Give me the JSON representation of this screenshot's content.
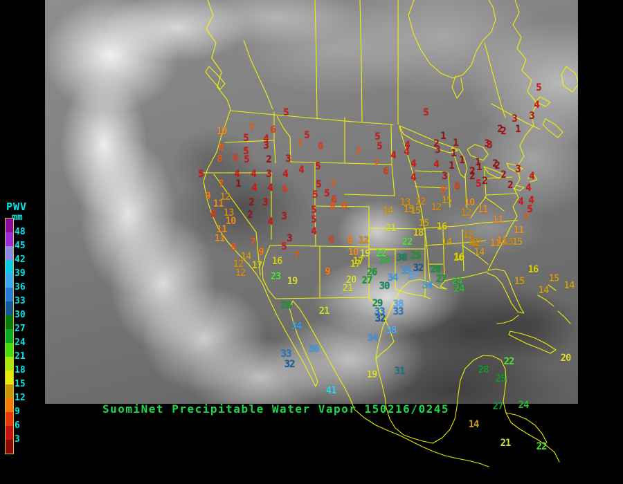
{
  "title": {
    "text": "SuomiNet Precipitable Water Vapor 150216/0245",
    "color": "#1ed74a"
  },
  "legend": {
    "heading": "PWV",
    "unit": "mm",
    "label_color": "#00e8e8",
    "labels": [
      "48",
      "45",
      "42",
      "39",
      "36",
      "33",
      "30",
      "27",
      "24",
      "21",
      "18",
      "15",
      "12",
      "9",
      "6",
      "3"
    ],
    "cell_colors": [
      "#8a0a9a",
      "#9a2ad2",
      "#8d8ae6",
      "#0cc8e6",
      "#3aa8f5",
      "#2a7ad8",
      "#14579a",
      "#0a7a10",
      "#0aa822",
      "#46da10",
      "#aae80a",
      "#e8e80a",
      "#c8960a",
      "#f5780a",
      "#e6360e",
      "#c41212",
      "#8a0a0a"
    ]
  },
  "map": {
    "outline_color": "#f8f800"
  },
  "palette": [
    [
      2,
      "#a01010"
    ],
    [
      3,
      "#b81212"
    ],
    [
      5,
      "#d81414"
    ],
    [
      6,
      "#e63a14"
    ],
    [
      8,
      "#ef5c14"
    ],
    [
      9,
      "#ff7c10"
    ],
    [
      11,
      "#eb8d25"
    ],
    [
      13,
      "#cc8a14"
    ],
    [
      15,
      "#c89c1c"
    ],
    [
      18,
      "#d9cf10"
    ],
    [
      20,
      "#dede3a"
    ],
    [
      21,
      "#d2e032"
    ],
    [
      23,
      "#4ce63c"
    ],
    [
      24,
      "#28bd3c"
    ],
    [
      28,
      "#129b35"
    ],
    [
      30,
      "#0c8a57"
    ],
    [
      31,
      "#19738f"
    ],
    [
      32,
      "#155a99"
    ],
    [
      33,
      "#2478cc"
    ],
    [
      36,
      "#3a99ea"
    ],
    [
      38,
      "#56abf5"
    ],
    [
      40,
      "#63b8ff"
    ],
    [
      99,
      "#35d8ee"
    ]
  ],
  "stations": [
    [
      413,
      163,
      "5"
    ],
    [
      363,
      185,
      "7"
    ],
    [
      394,
      188,
      "6"
    ],
    [
      320,
      190,
      "10"
    ],
    [
      355,
      200,
      "5"
    ],
    [
      384,
      201,
      "4"
    ],
    [
      443,
      196,
      "5"
    ],
    [
      433,
      209,
      "7"
    ],
    [
      463,
      212,
      "6"
    ],
    [
      319,
      214,
      "8"
    ],
    [
      355,
      219,
      "5"
    ],
    [
      384,
      211,
      "3"
    ],
    [
      317,
      230,
      "8"
    ],
    [
      340,
      229,
      "6"
    ],
    [
      356,
      231,
      "5"
    ],
    [
      388,
      231,
      "2"
    ],
    [
      416,
      230,
      "3"
    ],
    [
      290,
      252,
      "5"
    ],
    [
      319,
      266,
      "7"
    ],
    [
      300,
      284,
      "9"
    ],
    [
      325,
      285,
      "12"
    ],
    [
      342,
      252,
      "4"
    ],
    [
      344,
      266,
      "1"
    ],
    [
      366,
      252,
      "4"
    ],
    [
      388,
      252,
      "3"
    ],
    [
      412,
      252,
      "4"
    ],
    [
      435,
      246,
      "4"
    ],
    [
      459,
      241,
      "5"
    ],
    [
      367,
      272,
      "4"
    ],
    [
      390,
      272,
      "4"
    ],
    [
      411,
      274,
      "6"
    ],
    [
      460,
      267,
      "5"
    ],
    [
      481,
      267,
      "7"
    ],
    [
      472,
      280,
      "5"
    ],
    [
      482,
      289,
      "6"
    ],
    [
      455,
      282,
      "5"
    ],
    [
      315,
      295,
      "11"
    ],
    [
      308,
      310,
      "6"
    ],
    [
      330,
      308,
      "13"
    ],
    [
      333,
      320,
      "10"
    ],
    [
      320,
      332,
      "11"
    ],
    [
      317,
      345,
      "11"
    ],
    [
      337,
      358,
      "8"
    ],
    [
      344,
      382,
      "12"
    ],
    [
      371,
      384,
      "17"
    ],
    [
      347,
      395,
      "12"
    ],
    [
      363,
      293,
      "2"
    ],
    [
      383,
      293,
      "3"
    ],
    [
      361,
      311,
      "2"
    ],
    [
      390,
      321,
      "4"
    ],
    [
      410,
      313,
      "3"
    ],
    [
      418,
      345,
      "3"
    ],
    [
      410,
      357,
      "5"
    ],
    [
      453,
      304,
      "5"
    ],
    [
      453,
      318,
      "5"
    ],
    [
      453,
      335,
      "4"
    ],
    [
      478,
      347,
      "6"
    ],
    [
      480,
      299,
      "8"
    ],
    [
      497,
      298,
      "8"
    ],
    [
      365,
      350,
      "7"
    ],
    [
      377,
      365,
      "9"
    ],
    [
      355,
      371,
      "14"
    ],
    [
      400,
      378,
      "16"
    ],
    [
      398,
      400,
      "23"
    ],
    [
      422,
      407,
      "19"
    ],
    [
      428,
      370,
      "7"
    ],
    [
      473,
      393,
      "9"
    ],
    [
      505,
      348,
      "9"
    ],
    [
      525,
      348,
      "12"
    ],
    [
      510,
      365,
      "10"
    ],
    [
      527,
      367,
      "19"
    ],
    [
      513,
      382,
      "17"
    ],
    [
      507,
      405,
      "20"
    ],
    [
      502,
      417,
      "21"
    ],
    [
      537,
      394,
      "26"
    ],
    [
      530,
      406,
      "27"
    ],
    [
      555,
      414,
      "30"
    ],
    [
      615,
      163,
      "5"
    ],
    [
      545,
      198,
      "5"
    ],
    [
      548,
      212,
      "5"
    ],
    [
      517,
      220,
      "7"
    ],
    [
      543,
      237,
      "7"
    ],
    [
      568,
      225,
      "4"
    ],
    [
      588,
      210,
      "4"
    ],
    [
      587,
      220,
      "4"
    ],
    [
      557,
      248,
      "6"
    ],
    [
      597,
      237,
      "4"
    ],
    [
      597,
      257,
      "4"
    ],
    [
      630,
      208,
      "2"
    ],
    [
      632,
      217,
      "3"
    ],
    [
      640,
      197,
      "1"
    ],
    [
      658,
      207,
      "1"
    ],
    [
      655,
      222,
      "1"
    ],
    [
      667,
      232,
      "1"
    ],
    [
      652,
      240,
      "1"
    ],
    [
      630,
      238,
      "4"
    ],
    [
      642,
      255,
      "3"
    ],
    [
      682,
      248,
      "2"
    ],
    [
      690,
      235,
      "1"
    ],
    [
      722,
      187,
      "2"
    ],
    [
      703,
      208,
      "3"
    ],
    [
      715,
      237,
      "2"
    ],
    [
      682,
      255,
      "2"
    ],
    [
      691,
      266,
      "5"
    ],
    [
      660,
      270,
      "6"
    ],
    [
      640,
      275,
      "8"
    ],
    [
      585,
      293,
      "13"
    ],
    [
      607,
      292,
      "12"
    ],
    [
      590,
      303,
      "15"
    ],
    [
      630,
      300,
      "12"
    ],
    [
      678,
      293,
      "10"
    ],
    [
      645,
      290,
      "15"
    ],
    [
      560,
      305,
      "14"
    ],
    [
      600,
      305,
      "15"
    ],
    [
      673,
      308,
      "12"
    ],
    [
      697,
      303,
      "11"
    ],
    [
      612,
      323,
      "15"
    ],
    [
      638,
      328,
      "16"
    ],
    [
      604,
      337,
      "18"
    ],
    [
      719,
      318,
      "11"
    ],
    [
      676,
      340,
      "12"
    ],
    [
      683,
      350,
      "12"
    ],
    [
      645,
      350,
      "14"
    ],
    [
      725,
      348,
      "11"
    ],
    [
      692,
      365,
      "14"
    ],
    [
      662,
      373,
      "16"
    ],
    [
      588,
      350,
      "22"
    ],
    [
      564,
      330,
      "21"
    ],
    [
      550,
      367,
      "22"
    ],
    [
      555,
      377,
      "24"
    ],
    [
      580,
      373,
      "30"
    ],
    [
      600,
      370,
      "25"
    ],
    [
      517,
      378,
      "17"
    ],
    [
      663,
      372,
      "16"
    ],
    [
      604,
      388,
      "32"
    ],
    [
      629,
      390,
      "28"
    ],
    [
      586,
      392,
      "35"
    ],
    [
      596,
      400,
      "37"
    ],
    [
      567,
      402,
      "34"
    ],
    [
      617,
      413,
      "34"
    ],
    [
      637,
      404,
      "27"
    ],
    [
      660,
      407,
      "24"
    ],
    [
      663,
      418,
      "24"
    ],
    [
      545,
      439,
      "29"
    ],
    [
      575,
      440,
      "38"
    ],
    [
      548,
      451,
      "33"
    ],
    [
      575,
      451,
      "33"
    ],
    [
      549,
      461,
      "32"
    ],
    [
      565,
      478,
      "38"
    ],
    [
      538,
      489,
      "34"
    ],
    [
      537,
      542,
      "19"
    ],
    [
      577,
      537,
      "31"
    ],
    [
      687,
      352,
      "12"
    ],
    [
      715,
      352,
      "11"
    ],
    [
      733,
      350,
      "13"
    ],
    [
      749,
      333,
      "11"
    ],
    [
      747,
      350,
      "15"
    ],
    [
      770,
      390,
      "16"
    ],
    [
      750,
      407,
      "15"
    ],
    [
      800,
      403,
      "15"
    ],
    [
      785,
      420,
      "14"
    ],
    [
      822,
      413,
      "14"
    ],
    [
      778,
      127,
      "5"
    ],
    [
      775,
      152,
      "4"
    ],
    [
      768,
      168,
      "3"
    ],
    [
      743,
      172,
      "3"
    ],
    [
      748,
      187,
      "1"
    ],
    [
      727,
      190,
      "2"
    ],
    [
      707,
      210,
      "3"
    ],
    [
      692,
      242,
      "1"
    ],
    [
      718,
      240,
      "2"
    ],
    [
      727,
      253,
      "2"
    ],
    [
      748,
      245,
      "3"
    ],
    [
      700,
      262,
      "2"
    ],
    [
      737,
      268,
      "2"
    ],
    [
      768,
      255,
      "4"
    ],
    [
      763,
      272,
      "4"
    ],
    [
      752,
      292,
      "4"
    ],
    [
      767,
      290,
      "4"
    ],
    [
      765,
      303,
      "5"
    ],
    [
      760,
      315,
      "7"
    ],
    [
      413,
      442,
      "28"
    ],
    [
      468,
      450,
      "21"
    ],
    [
      428,
      472,
      "34"
    ],
    [
      453,
      505,
      "36"
    ],
    [
      413,
      512,
      "33"
    ],
    [
      418,
      527,
      "32"
    ],
    [
      478,
      565,
      "41"
    ],
    [
      735,
      523,
      "22"
    ],
    [
      698,
      535,
      "28"
    ],
    [
      723,
      548,
      "25"
    ],
    [
      817,
      518,
      "20"
    ],
    [
      719,
      588,
      "27"
    ],
    [
      756,
      586,
      "24"
    ],
    [
      684,
      614,
      "14"
    ],
    [
      730,
      641,
      "21"
    ],
    [
      782,
      646,
      "22"
    ]
  ]
}
